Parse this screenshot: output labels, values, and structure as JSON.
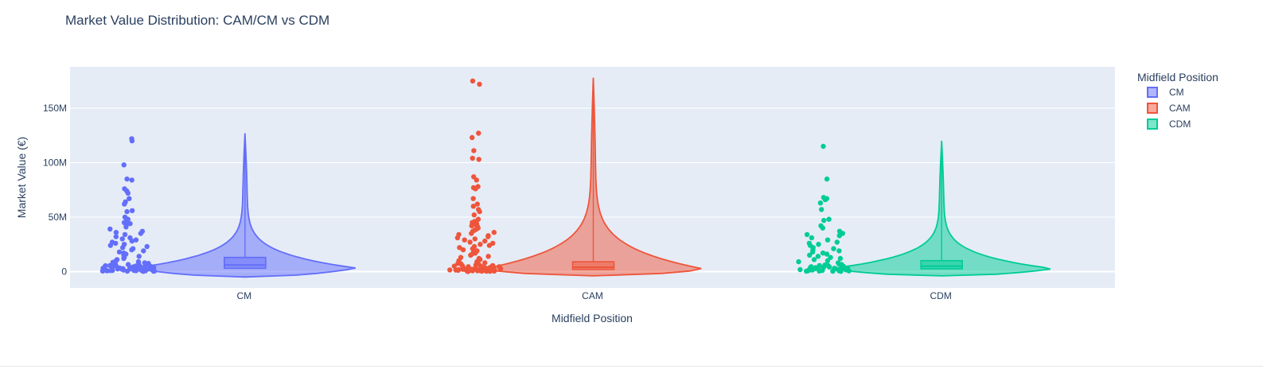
{
  "chart_data": {
    "type": "violin",
    "title": "Market Value Distribution: CAM/CM vs CDM",
    "xlabel": "Midfield Position",
    "ylabel": "Market Value (€)",
    "categories": [
      "CM",
      "CAM",
      "CDM"
    ],
    "y_ticks": [
      {
        "value": 0,
        "label": "0"
      },
      {
        "value": 50000000,
        "label": "50M"
      },
      {
        "value": 100000000,
        "label": "100M"
      },
      {
        "value": 150000000,
        "label": "150M"
      }
    ],
    "ylim": [
      -15000000,
      188000000
    ],
    "grid": true,
    "legend": {
      "title": "Midfield Position",
      "placement": "right"
    },
    "series": [
      {
        "name": "CM",
        "color": "#636efa",
        "fill": "rgba(99,110,250,0.5)",
        "box": {
          "q1": 3000000,
          "median": 6000000,
          "q3": 13000000
        },
        "violin_max": 127000000,
        "violin_min": -5000000,
        "points": [
          122000000,
          120000000,
          98000000,
          85000000,
          84000000,
          76000000,
          74000000,
          72000000,
          67000000,
          64000000,
          62000000,
          56000000,
          55000000,
          50000000,
          48000000,
          46000000,
          45000000,
          44000000,
          43000000,
          41000000,
          39000000,
          37000000,
          36000000,
          35000000,
          34000000,
          32000000,
          31000000,
          30000000,
          29000000,
          28000000,
          27000000,
          26000000,
          25000000,
          24000000,
          23000000,
          22000000,
          21000000,
          20000000,
          19000000,
          18000000,
          17000000,
          16000000,
          15000000,
          14000000,
          13000000,
          12000000,
          11000000,
          10000000,
          9000000,
          8500000,
          8000000,
          7500000,
          7000000,
          6500000,
          6000000,
          5500000,
          5000000,
          4500000,
          4000000,
          3500000,
          3000000,
          2700000,
          2400000,
          2100000,
          1800000,
          1500000,
          1300000,
          1100000,
          900000,
          700000,
          500000,
          300000
        ]
      },
      {
        "name": "CAM",
        "color": "#ef553b",
        "fill": "rgba(239,85,59,0.5)",
        "box": {
          "q1": 2000000,
          "median": 4000000,
          "q3": 9000000
        },
        "violin_max": 178000000,
        "violin_min": -4000000,
        "points": [
          175000000,
          172000000,
          127000000,
          123000000,
          111000000,
          104000000,
          103000000,
          87000000,
          84000000,
          78000000,
          77000000,
          76000000,
          67000000,
          62000000,
          60000000,
          57000000,
          55000000,
          52000000,
          48000000,
          46000000,
          45000000,
          44000000,
          43000000,
          42000000,
          41000000,
          40000000,
          39000000,
          38000000,
          37000000,
          36000000,
          35000000,
          34000000,
          33000000,
          32000000,
          31000000,
          30000000,
          29000000,
          28000000,
          27000000,
          26000000,
          25000000,
          24000000,
          23000000,
          22000000,
          21000000,
          20000000,
          19000000,
          18000000,
          17000000,
          16000000,
          15000000,
          14000000,
          13000000,
          12000000,
          11000000,
          10000000,
          9000000,
          8000000,
          7500000,
          7000000,
          6500000,
          6000000,
          5500000,
          5000000,
          4500000,
          4000000,
          3500000,
          3000000,
          2700000,
          2400000,
          2100000,
          1800000,
          1500000,
          1200000,
          1000000,
          800000,
          600000,
          400000,
          200000
        ]
      },
      {
        "name": "CDM",
        "color": "#00cc96",
        "fill": "rgba(0,204,150,0.5)",
        "box": {
          "q1": 2500000,
          "median": 5000000,
          "q3": 10000000
        },
        "violin_max": 120000000,
        "violin_min": -4000000,
        "points": [
          115000000,
          85000000,
          68000000,
          67000000,
          66000000,
          63000000,
          57000000,
          48000000,
          47000000,
          42000000,
          40000000,
          37000000,
          35000000,
          34000000,
          33000000,
          31000000,
          29000000,
          27000000,
          26000000,
          25000000,
          24000000,
          22000000,
          21000000,
          20000000,
          19000000,
          18000000,
          17000000,
          16000000,
          15000000,
          14000000,
          13000000,
          12000000,
          11000000,
          10000000,
          9000000,
          8000000,
          7000000,
          6500000,
          6000000,
          5500000,
          5000000,
          4500000,
          4000000,
          3500000,
          3000000,
          2600000,
          2200000,
          1800000,
          1400000,
          1100000,
          800000,
          500000,
          300000
        ]
      }
    ]
  }
}
